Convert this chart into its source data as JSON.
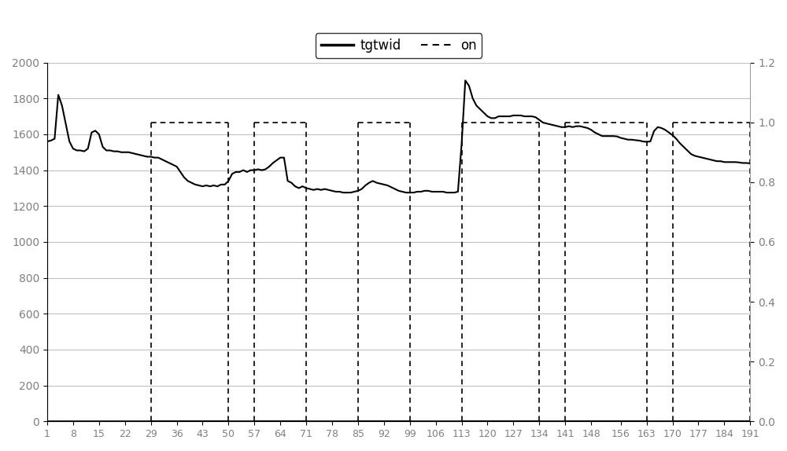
{
  "legend_labels": [
    "tgtwid",
    "on"
  ],
  "x_ticks": [
    1,
    8,
    15,
    22,
    29,
    36,
    43,
    50,
    57,
    64,
    71,
    78,
    85,
    92,
    99,
    106,
    113,
    120,
    127,
    134,
    141,
    148,
    156,
    163,
    170,
    177,
    184,
    191
  ],
  "yleft_min": 0,
  "yleft_max": 2000,
  "yleft_ticks": [
    0,
    200,
    400,
    600,
    800,
    1000,
    1200,
    1400,
    1600,
    1800,
    2000
  ],
  "yright_min": 0,
  "yright_max": 1.2,
  "yright_ticks": [
    0,
    0.2,
    0.4,
    0.6,
    0.8,
    1.0,
    1.2
  ],
  "on_segments": [
    [
      29,
      50
    ],
    [
      57,
      71
    ],
    [
      85,
      99
    ],
    [
      113,
      134
    ],
    [
      141,
      163
    ],
    [
      170,
      191
    ]
  ],
  "tgtwid": [
    1560,
    1565,
    1575,
    1820,
    1760,
    1660,
    1560,
    1520,
    1510,
    1510,
    1505,
    1520,
    1610,
    1620,
    1600,
    1530,
    1510,
    1510,
    1505,
    1505,
    1500,
    1500,
    1500,
    1495,
    1490,
    1485,
    1480,
    1475,
    1475,
    1470,
    1470,
    1460,
    1450,
    1440,
    1430,
    1420,
    1390,
    1360,
    1340,
    1330,
    1320,
    1315,
    1310,
    1315,
    1310,
    1315,
    1310,
    1320,
    1320,
    1340,
    1380,
    1390,
    1390,
    1400,
    1390,
    1400,
    1400,
    1405,
    1400,
    1405,
    1420,
    1440,
    1455,
    1470,
    1470,
    1340,
    1330,
    1310,
    1300,
    1310,
    1300,
    1295,
    1290,
    1295,
    1290,
    1295,
    1290,
    1285,
    1280,
    1280,
    1275,
    1275,
    1275,
    1280,
    1285,
    1295,
    1315,
    1330,
    1340,
    1330,
    1325,
    1320,
    1315,
    1305,
    1295,
    1285,
    1280,
    1275,
    1275,
    1275,
    1280,
    1280,
    1285,
    1285,
    1280,
    1280,
    1280,
    1280,
    1275,
    1275,
    1275,
    1280,
    1545,
    1900,
    1870,
    1800,
    1760,
    1740,
    1720,
    1700,
    1690,
    1690,
    1700,
    1700,
    1700,
    1700,
    1705,
    1705,
    1705,
    1700,
    1700,
    1700,
    1695,
    1680,
    1665,
    1660,
    1655,
    1650,
    1645,
    1640,
    1640,
    1645,
    1640,
    1645,
    1645,
    1640,
    1635,
    1625,
    1610,
    1600,
    1590,
    1590,
    1590,
    1590,
    1588,
    1580,
    1575,
    1570,
    1570,
    1567,
    1565,
    1560,
    1558,
    1560,
    1618,
    1640,
    1635,
    1625,
    1610,
    1595,
    1575,
    1550,
    1530,
    1510,
    1490,
    1480,
    1475,
    1470,
    1465,
    1460,
    1455,
    1450,
    1450,
    1445,
    1445,
    1445,
    1445,
    1443,
    1440,
    1440,
    1438,
    1440,
    1443,
    1440,
    1443,
    1448,
    1450,
    1452,
    1455,
    1460,
    1465
  ],
  "bg_color": "#ffffff",
  "line_color": "#000000",
  "dashed_color": "#000000",
  "grid_color": "#c0c0c0",
  "tick_label_color": "#808080"
}
